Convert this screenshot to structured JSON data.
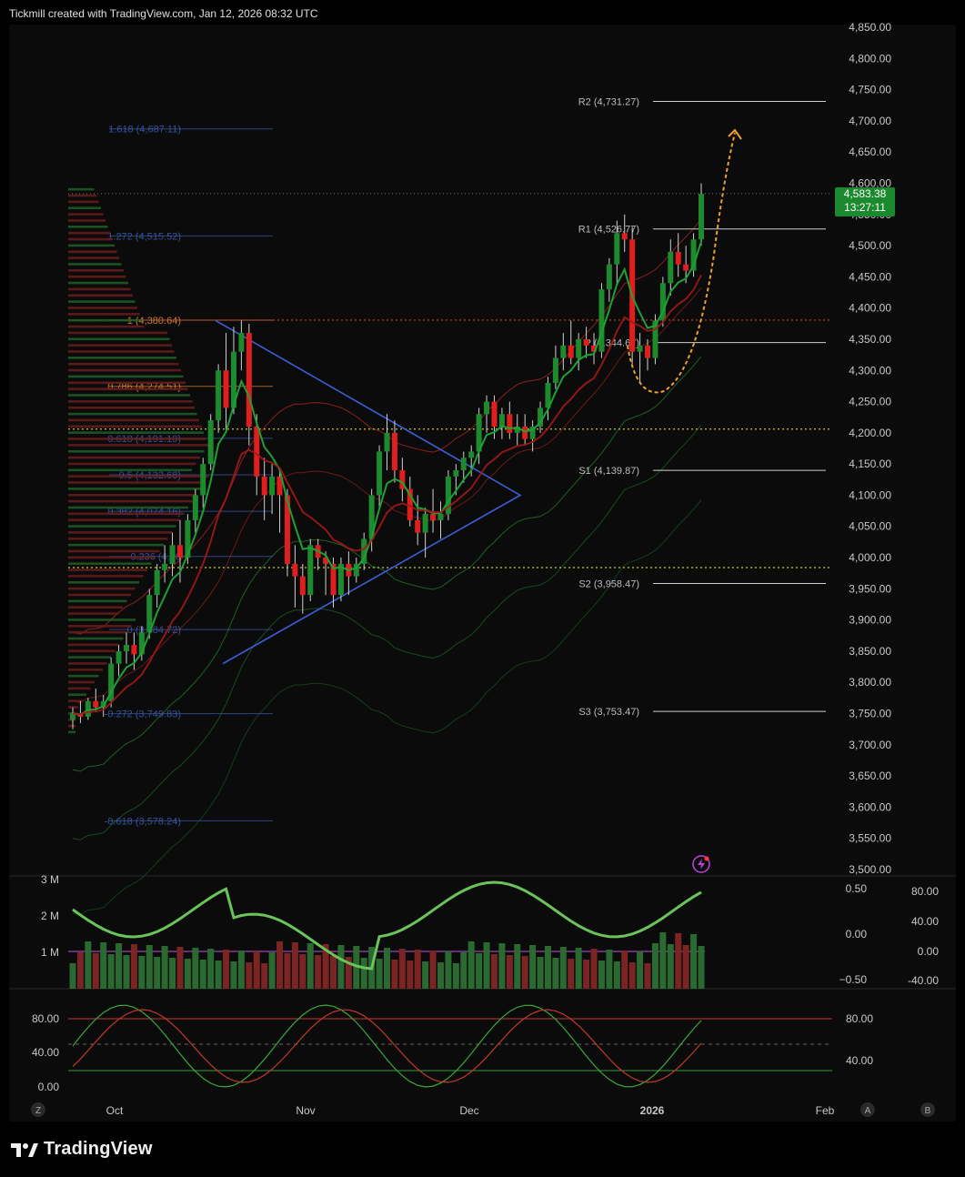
{
  "header": {
    "credit": "Tickmill created with TradingView.com, Jan 12, 2026 08:32 UTC"
  },
  "brand": {
    "name": "TradingView"
  },
  "badge": {
    "price": "4,583.38",
    "countdown": "13:27:11"
  },
  "colors": {
    "bull": "#1e8a2e",
    "bear": "#e01e1e",
    "fib_blue": "#3c5fb0",
    "fib_orange": "#e08a3a",
    "pivot": "#d0d0d0",
    "triangle": "#3c5fd8"
  },
  "chart_data": [
    {
      "type": "candlestick",
      "title": "",
      "y_ticks": [
        "4,850.00",
        "4,800.00",
        "4,750.00",
        "4,700.00",
        "4,650.00",
        "4,600.00",
        "4,550.00",
        "4,500.00",
        "4,450.00",
        "4,400.00",
        "4,350.00",
        "4,300.00",
        "4,250.00",
        "4,200.00",
        "4,150.00",
        "4,100.00",
        "4,050.00",
        "4,000.00",
        "3,950.00",
        "3,900.00",
        "3,850.00",
        "3,800.00",
        "3,750.00",
        "3,700.00",
        "3,650.00",
        "3,600.00",
        "3,550.00",
        "3,500.00"
      ],
      "ylim": [
        3500,
        4850
      ],
      "x_ticks": [
        "Oct",
        "Nov",
        "Dec",
        "2026",
        "Feb"
      ],
      "ohlc": [
        [
          3740,
          3760,
          3725,
          3750
        ],
        [
          3750,
          3770,
          3735,
          3745
        ],
        [
          3745,
          3775,
          3740,
          3770
        ],
        [
          3770,
          3790,
          3755,
          3760
        ],
        [
          3760,
          3780,
          3745,
          3770
        ],
        [
          3770,
          3840,
          3760,
          3830
        ],
        [
          3830,
          3860,
          3810,
          3850
        ],
        [
          3850,
          3880,
          3830,
          3860
        ],
        [
          3860,
          3880,
          3820,
          3845
        ],
        [
          3845,
          3890,
          3835,
          3880
        ],
        [
          3880,
          3950,
          3870,
          3940
        ],
        [
          3940,
          3990,
          3920,
          3980
        ],
        [
          3980,
          4020,
          3960,
          3990
        ],
        [
          3990,
          4040,
          3970,
          4020
        ],
        [
          4020,
          4060,
          3960,
          4000
        ],
        [
          4000,
          4070,
          3990,
          4060
        ],
        [
          4060,
          4110,
          4040,
          4100
        ],
        [
          4100,
          4160,
          4080,
          4150
        ],
        [
          4150,
          4230,
          4140,
          4220
        ],
        [
          4220,
          4310,
          4200,
          4300
        ],
        [
          4300,
          4360,
          4200,
          4240
        ],
        [
          4240,
          4370,
          4230,
          4330
        ],
        [
          4330,
          4380,
          4300,
          4360
        ],
        [
          4360,
          4375,
          4180,
          4210
        ],
        [
          4210,
          4230,
          4100,
          4130
        ],
        [
          4130,
          4160,
          4060,
          4100
        ],
        [
          4100,
          4150,
          4070,
          4130
        ],
        [
          4130,
          4140,
          4040,
          4100
        ],
        [
          4100,
          4110,
          3970,
          3990
        ],
        [
          3990,
          4020,
          3920,
          3970
        ],
        [
          3970,
          3990,
          3910,
          3940
        ],
        [
          3940,
          4030,
          3930,
          4020
        ],
        [
          4020,
          4030,
          3980,
          4000
        ],
        [
          4000,
          4010,
          3940,
          3990
        ],
        [
          3990,
          4000,
          3920,
          3940
        ],
        [
          3940,
          4000,
          3930,
          3990
        ],
        [
          3990,
          4010,
          3940,
          3970
        ],
        [
          3970,
          4000,
          3960,
          3990
        ],
        [
          3990,
          4040,
          3980,
          4030
        ],
        [
          4030,
          4110,
          4010,
          4100
        ],
        [
          4100,
          4180,
          4080,
          4170
        ],
        [
          4170,
          4230,
          4140,
          4200
        ],
        [
          4200,
          4220,
          4120,
          4140
        ],
        [
          4140,
          4160,
          4090,
          4110
        ],
        [
          4110,
          4130,
          4050,
          4060
        ],
        [
          4060,
          4100,
          4020,
          4040
        ],
        [
          4040,
          4080,
          4000,
          4070
        ],
        [
          4070,
          4110,
          4040,
          4060
        ],
        [
          4060,
          4090,
          4030,
          4070
        ],
        [
          4070,
          4140,
          4060,
          4130
        ],
        [
          4130,
          4150,
          4100,
          4140
        ],
        [
          4140,
          4170,
          4120,
          4160
        ],
        [
          4160,
          4180,
          4130,
          4170
        ],
        [
          4170,
          4240,
          4150,
          4230
        ],
        [
          4230,
          4260,
          4200,
          4250
        ],
        [
          4250,
          4260,
          4190,
          4210
        ],
        [
          4210,
          4240,
          4190,
          4230
        ],
        [
          4230,
          4250,
          4190,
          4200
        ],
        [
          4200,
          4230,
          4180,
          4210
        ],
        [
          4210,
          4230,
          4180,
          4190
        ],
        [
          4190,
          4220,
          4170,
          4210
        ],
        [
          4210,
          4250,
          4200,
          4240
        ],
        [
          4240,
          4290,
          4220,
          4280
        ],
        [
          4280,
          4340,
          4270,
          4320
        ],
        [
          4320,
          4360,
          4300,
          4340
        ],
        [
          4340,
          4380,
          4310,
          4320
        ],
        [
          4320,
          4360,
          4300,
          4350
        ],
        [
          4350,
          4370,
          4320,
          4340
        ],
        [
          4340,
          4360,
          4310,
          4330
        ],
        [
          4330,
          4440,
          4320,
          4430
        ],
        [
          4430,
          4480,
          4410,
          4470
        ],
        [
          4470,
          4540,
          4440,
          4520
        ],
        [
          4520,
          4550,
          4490,
          4510
        ],
        [
          4510,
          4530,
          4310,
          4330
        ],
        [
          4330,
          4360,
          4280,
          4340
        ],
        [
          4340,
          4350,
          4300,
          4320
        ],
        [
          4320,
          4390,
          4310,
          4380
        ],
        [
          4380,
          4450,
          4370,
          4440
        ],
        [
          4440,
          4510,
          4420,
          4490
        ],
        [
          4490,
          4520,
          4450,
          4470
        ],
        [
          4470,
          4500,
          4440,
          4460
        ],
        [
          4460,
          4520,
          4450,
          4510
        ],
        [
          4510,
          4600,
          4500,
          4583
        ]
      ],
      "fib_levels": [
        {
          "label": "1.618 (4,687.11)",
          "value": 4687.11
        },
        {
          "label": "1.272 (4,515.52)",
          "value": 4515.52
        },
        {
          "label": "1 (4,380.64)",
          "value": 4380.64
        },
        {
          "label": "0.786 (4,274.51)",
          "value": 4274.51
        },
        {
          "label": "0.618 (4,191.19)",
          "value": 4191.19
        },
        {
          "label": "0.5 (4,132.68)",
          "value": 4132.68
        },
        {
          "label": "0.382 (4,074.16)",
          "value": 4074.16
        },
        {
          "label": "0.236 (4,00",
          "value": 4001.9
        },
        {
          "label": "0 (3,884.72)",
          "value": 3884.72
        },
        {
          "label": "-0.272 (3,749.83)",
          "value": 3749.83
        },
        {
          "label": "-0.618 (3,578.24)",
          "value": 3578.24
        }
      ],
      "pivots": [
        {
          "label": "R2 (4,731.27)",
          "value": 4731.27
        },
        {
          "label": "R1 (4,526.77)",
          "value": 4526.77
        },
        {
          "label": "P (4,344.67)",
          "value": 4344.67
        },
        {
          "label": "S1 (4,139.87)",
          "value": 4139.87
        },
        {
          "label": "S2 (3,958.47)",
          "value": 3958.47
        },
        {
          "label": "S3 (3,753.47)",
          "value": 3753.47
        }
      ],
      "dotted_levels": [
        4380.64,
        4206,
        3984
      ]
    },
    {
      "type": "bar",
      "title": "",
      "left_ticks": [
        "3 M",
        "2 M",
        "1 M"
      ],
      "right_ticks_a": [
        "0.50",
        "0.00",
        "−0.50"
      ],
      "right_ticks_b": [
        "80.00",
        "40.00",
        "0.00",
        "-40.00"
      ]
    },
    {
      "type": "line",
      "title": "",
      "left_ticks": [
        "80.00",
        "40.00",
        "0.00"
      ],
      "right_ticks": [
        "80.00",
        "40.00"
      ]
    }
  ],
  "bottom_buttons": {
    "z": "Z",
    "a": "A",
    "b": "B"
  }
}
